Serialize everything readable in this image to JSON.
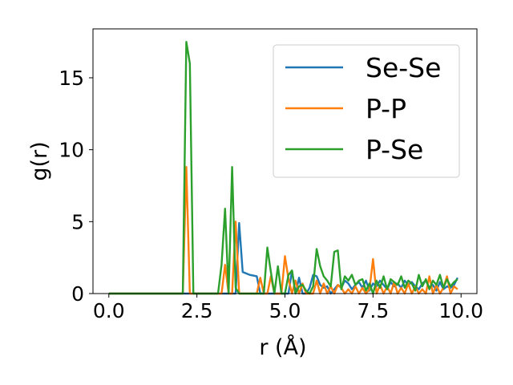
{
  "chart_data": {
    "type": "line",
    "xlabel": "r (Å)",
    "ylabel": "g(r)",
    "xlim": [
      -0.45,
      10.45
    ],
    "ylim": [
      0,
      18.4
    ],
    "xticks": [
      0.0,
      2.5,
      5.0,
      7.5,
      10.0
    ],
    "xtick_labels": [
      "0.0",
      "2.5",
      "5.0",
      "7.5",
      "10.0"
    ],
    "yticks": [
      0,
      5,
      10,
      15
    ],
    "ytick_labels": [
      "0",
      "5",
      "10",
      "15"
    ],
    "grid": false,
    "legend_position": "top-right",
    "series": [
      {
        "name": "Se-Se",
        "color": "#1f77b4",
        "x": [
          0.0,
          0.1,
          0.2,
          0.3,
          0.4,
          0.5,
          0.6,
          0.7,
          0.8,
          0.9,
          1.0,
          1.1,
          1.2,
          1.3,
          1.4,
          1.5,
          1.6,
          1.7,
          1.8,
          1.9,
          2.0,
          2.1,
          2.2,
          2.3,
          2.4,
          2.5,
          2.6,
          2.7,
          2.8,
          2.9,
          3.0,
          3.1,
          3.2,
          3.3,
          3.4,
          3.5,
          3.6,
          3.7,
          3.8,
          3.9,
          4.0,
          4.1,
          4.2,
          4.3,
          4.4,
          4.5,
          4.6,
          4.7,
          4.8,
          4.9,
          5.0,
          5.1,
          5.2,
          5.3,
          5.4,
          5.5,
          5.6,
          5.7,
          5.8,
          5.9,
          6.0,
          6.1,
          6.2,
          6.3,
          6.4,
          6.5,
          6.6,
          6.7,
          6.8,
          6.9,
          7.0,
          7.1,
          7.2,
          7.3,
          7.4,
          7.5,
          7.6,
          7.7,
          7.8,
          7.9,
          8.0,
          8.1,
          8.2,
          8.3,
          8.4,
          8.5,
          8.6,
          8.7,
          8.8,
          8.9,
          9.0,
          9.1,
          9.2,
          9.3,
          9.4,
          9.5,
          9.6,
          9.7,
          9.8,
          9.9
        ],
        "values": [
          0,
          0,
          0,
          0,
          0,
          0,
          0,
          0,
          0,
          0,
          0,
          0,
          0,
          0,
          0,
          0,
          0,
          0,
          0,
          0,
          0,
          0,
          0,
          0,
          0,
          0,
          0,
          0,
          0,
          0,
          0,
          0,
          0,
          0,
          0,
          0,
          0,
          4.9,
          1.5,
          1.4,
          1.3,
          1.25,
          1.2,
          0,
          0,
          0,
          0,
          0,
          0,
          0,
          0,
          0,
          1.6,
          0,
          1.1,
          0,
          0,
          0.4,
          1.3,
          1.2,
          0.6,
          0.4,
          0.5,
          0,
          0.3,
          0.6,
          0.4,
          0.9,
          0.7,
          0.3,
          0.6,
          0.8,
          0.4,
          0.9,
          0.2,
          0.7,
          0.5,
          0.9,
          0.6,
          0.3,
          0.8,
          0.5,
          0.7,
          0.4,
          0.9,
          0.6,
          0.8,
          0.5,
          0.3,
          0.7,
          0.9,
          0.4,
          0.6,
          0.2,
          0.8,
          0.3,
          0.5,
          0.4,
          0.6,
          1.1
        ]
      },
      {
        "name": "P-P",
        "color": "#ff7f0e",
        "x": [
          0.0,
          0.1,
          0.2,
          0.3,
          0.4,
          0.5,
          0.6,
          0.7,
          0.8,
          0.9,
          1.0,
          1.1,
          1.2,
          1.3,
          1.4,
          1.5,
          1.6,
          1.7,
          1.8,
          1.9,
          2.0,
          2.1,
          2.2,
          2.3,
          2.4,
          2.5,
          2.6,
          2.7,
          2.8,
          2.9,
          3.0,
          3.1,
          3.2,
          3.3,
          3.4,
          3.5,
          3.6,
          3.7,
          3.8,
          3.9,
          4.0,
          4.1,
          4.2,
          4.3,
          4.4,
          4.5,
          4.6,
          4.7,
          4.8,
          4.9,
          5.0,
          5.1,
          5.2,
          5.3,
          5.4,
          5.5,
          5.6,
          5.7,
          5.8,
          5.9,
          6.0,
          6.1,
          6.2,
          6.3,
          6.4,
          6.5,
          6.6,
          6.7,
          6.8,
          6.9,
          7.0,
          7.1,
          7.2,
          7.3,
          7.4,
          7.5,
          7.6,
          7.7,
          7.8,
          7.9,
          8.0,
          8.1,
          8.2,
          8.3,
          8.4,
          8.5,
          8.6,
          8.7,
          8.8,
          8.9,
          9.0,
          9.1,
          9.2,
          9.3,
          9.4,
          9.5,
          9.6,
          9.7,
          9.8,
          9.9
        ],
        "values": [
          0,
          0,
          0,
          0,
          0,
          0,
          0,
          0,
          0,
          0,
          0,
          0,
          0,
          0,
          0,
          0,
          0,
          0,
          0,
          0,
          0,
          0,
          8.8,
          0,
          0,
          0,
          0,
          0,
          0,
          0,
          0,
          0,
          0,
          2.0,
          0,
          0,
          5.0,
          0,
          0,
          0,
          0,
          0,
          0,
          1.1,
          0,
          0,
          1.2,
          0,
          0,
          0,
          2.6,
          1.0,
          0,
          0.9,
          0,
          0.7,
          0,
          0,
          0,
          0.9,
          0,
          0.7,
          0,
          0.5,
          0,
          0.6,
          0.4,
          0,
          0.3,
          0,
          0.5,
          0,
          0.4,
          0,
          0.3,
          2.4,
          0,
          0.6,
          0,
          0.5,
          0,
          0.8,
          0,
          0.4,
          0,
          0.7,
          0,
          0.5,
          0,
          0.3,
          0,
          1.2,
          0,
          0.6,
          0,
          0.4,
          1.2,
          0,
          0.5,
          0.3
        ]
      },
      {
        "name": "P-Se",
        "color": "#2ca02c",
        "x": [
          0.0,
          0.1,
          0.2,
          0.3,
          0.4,
          0.5,
          0.6,
          0.7,
          0.8,
          0.9,
          1.0,
          1.1,
          1.2,
          1.3,
          1.4,
          1.5,
          1.6,
          1.7,
          1.8,
          1.9,
          2.0,
          2.1,
          2.2,
          2.3,
          2.4,
          2.5,
          2.6,
          2.7,
          2.8,
          2.9,
          3.0,
          3.1,
          3.2,
          3.3,
          3.4,
          3.5,
          3.6,
          3.7,
          3.8,
          3.9,
          4.0,
          4.1,
          4.2,
          4.3,
          4.4,
          4.5,
          4.6,
          4.7,
          4.8,
          4.9,
          5.0,
          5.1,
          5.2,
          5.3,
          5.4,
          5.5,
          5.6,
          5.7,
          5.8,
          5.9,
          6.0,
          6.1,
          6.2,
          6.3,
          6.4,
          6.5,
          6.6,
          6.7,
          6.8,
          6.9,
          7.0,
          7.1,
          7.2,
          7.3,
          7.4,
          7.5,
          7.6,
          7.7,
          7.8,
          7.9,
          8.0,
          8.1,
          8.2,
          8.3,
          8.4,
          8.5,
          8.6,
          8.7,
          8.8,
          8.9,
          9.0,
          9.1,
          9.2,
          9.3,
          9.4,
          9.5,
          9.6,
          9.7,
          9.8,
          9.9
        ],
        "values": [
          0,
          0,
          0,
          0,
          0,
          0,
          0,
          0,
          0,
          0,
          0,
          0,
          0,
          0,
          0,
          0,
          0,
          0,
          0,
          0,
          0,
          0,
          17.5,
          16.0,
          0,
          0,
          0,
          0,
          0,
          0,
          0,
          0,
          2.0,
          5.9,
          0,
          8.8,
          0.4,
          0,
          0,
          0,
          0,
          0,
          0,
          0,
          0,
          3.2,
          1.5,
          0,
          1.9,
          0,
          0,
          1.3,
          1.6,
          0,
          0.5,
          0.6,
          0.2,
          0,
          0.5,
          3.1,
          1.9,
          1.2,
          0.9,
          0.5,
          2.9,
          3.0,
          0.3,
          1.2,
          0.9,
          1.3,
          0.6,
          0.9,
          1.0,
          0.2,
          0.7,
          0,
          0.9,
          0.4,
          1.2,
          0.3,
          1.0,
          0.8,
          0.6,
          1.2,
          0.4,
          0.9,
          0.7,
          0.2,
          1.3,
          0.5,
          1.0,
          0.3,
          0.9,
          0.6,
          1.3,
          0.4,
          1.0,
          0.5,
          0.8,
          1.0
        ]
      }
    ]
  }
}
